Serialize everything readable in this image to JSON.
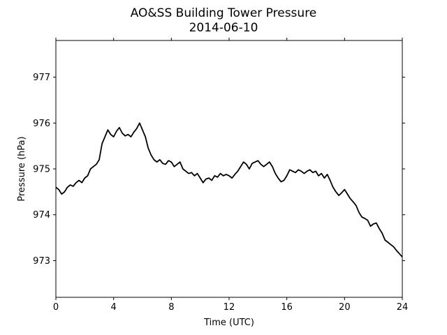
{
  "chart_data": {
    "type": "line",
    "title": "AO&SS Building Tower Pressure",
    "subtitle": "2014-06-10",
    "xlabel": "Time (UTC)",
    "ylabel": "Pressure (hPa)",
    "xlim": [
      0,
      24
    ],
    "ylim": [
      972.2,
      977.8
    ],
    "xticks": [
      0,
      4,
      8,
      12,
      16,
      20,
      24
    ],
    "yticks": [
      973,
      974,
      975,
      976,
      977
    ],
    "grid": false,
    "line_color": "#000000",
    "series": [
      {
        "x": [
          0,
          0.2,
          0.4,
          0.6,
          0.8,
          1.0,
          1.2,
          1.4,
          1.6,
          1.8,
          2.0,
          2.2,
          2.4,
          2.6,
          2.8,
          3.0,
          3.2,
          3.4,
          3.6,
          3.8,
          4.0,
          4.2,
          4.4,
          4.6,
          4.8,
          5.0,
          5.2,
          5.4,
          5.6,
          5.8,
          6.0,
          6.2,
          6.4,
          6.6,
          6.8,
          7.0,
          7.2,
          7.4,
          7.6,
          7.8,
          8.0,
          8.2,
          8.4,
          8.6,
          8.8,
          9.0,
          9.2,
          9.4,
          9.6,
          9.8,
          10.0,
          10.2,
          10.4,
          10.6,
          10.8,
          11.0,
          11.2,
          11.4,
          11.6,
          11.8,
          12.0,
          12.2,
          12.4,
          12.6,
          12.8,
          13.0,
          13.2,
          13.4,
          13.6,
          13.8,
          14.0,
          14.2,
          14.4,
          14.6,
          14.8,
          15.0,
          15.2,
          15.4,
          15.6,
          15.8,
          16.0,
          16.2,
          16.4,
          16.6,
          16.8,
          17.0,
          17.2,
          17.4,
          17.6,
          17.8,
          18.0,
          18.2,
          18.4,
          18.6,
          18.8,
          19.0,
          19.2,
          19.4,
          19.6,
          19.8,
          20.0,
          20.2,
          20.4,
          20.6,
          20.8,
          21.0,
          21.2,
          21.4,
          21.6,
          21.8,
          22.0,
          22.2,
          22.4,
          22.6,
          22.8,
          23.0,
          23.2,
          23.4,
          23.6,
          23.8,
          24.0
        ],
        "values": [
          974.6,
          974.55,
          974.45,
          974.5,
          974.6,
          974.65,
          974.62,
          974.7,
          974.75,
          974.7,
          974.8,
          974.85,
          975.0,
          975.05,
          975.1,
          975.2,
          975.55,
          975.7,
          975.85,
          975.75,
          975.7,
          975.82,
          975.9,
          975.78,
          975.72,
          975.75,
          975.7,
          975.8,
          975.88,
          976.0,
          975.85,
          975.7,
          975.45,
          975.3,
          975.2,
          975.15,
          975.2,
          975.12,
          975.1,
          975.18,
          975.15,
          975.05,
          975.1,
          975.15,
          975.0,
          974.95,
          974.9,
          974.92,
          974.85,
          974.9,
          974.8,
          974.7,
          974.78,
          974.8,
          974.75,
          974.85,
          974.82,
          974.9,
          974.85,
          974.88,
          974.85,
          974.8,
          974.88,
          974.95,
          975.05,
          975.15,
          975.1,
          975.0,
          975.12,
          975.15,
          975.18,
          975.1,
          975.05,
          975.1,
          975.15,
          975.05,
          974.9,
          974.8,
          974.72,
          974.75,
          974.85,
          974.98,
          974.95,
          974.92,
          974.98,
          974.95,
          974.9,
          974.95,
          974.98,
          974.92,
          974.95,
          974.85,
          974.9,
          974.8,
          974.88,
          974.75,
          974.6,
          974.5,
          974.42,
          974.48,
          974.55,
          974.45,
          974.35,
          974.28,
          974.2,
          974.05,
          973.95,
          973.92,
          973.88,
          973.75,
          973.8,
          973.82,
          973.7,
          973.6,
          973.45,
          973.4,
          973.35,
          973.3,
          973.22,
          973.15,
          973.08
        ]
      }
    ]
  }
}
